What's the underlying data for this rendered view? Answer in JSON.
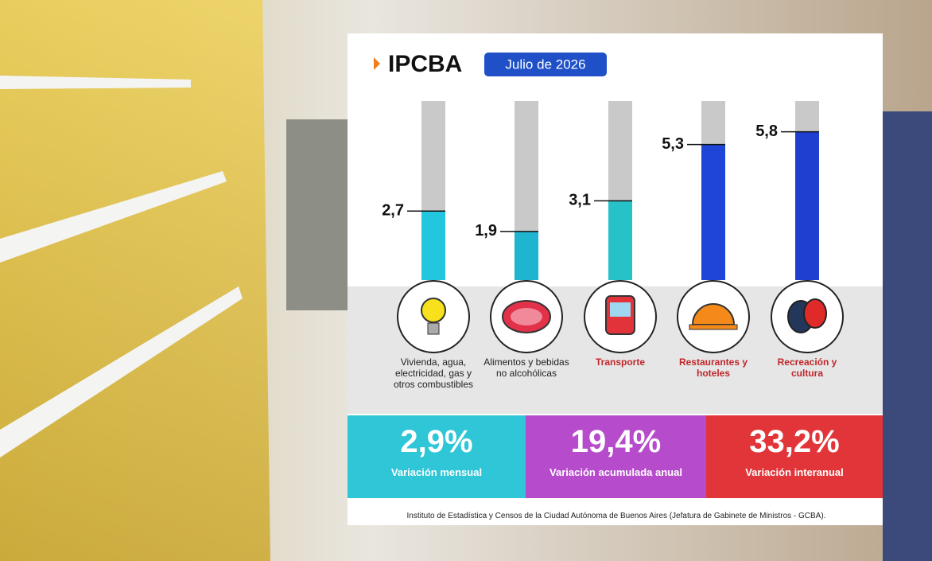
{
  "header": {
    "title": "IPCBA",
    "period": "Julio de 2026"
  },
  "chart_data": {
    "type": "bar",
    "categories": [
      "Vivienda, agua, electricidad, gas y otros combustibles",
      "Alimentos y bebidas no alcohólicas",
      "Transporte",
      "Restaurantes y hoteles",
      "Recreación y cultura"
    ],
    "values": [
      2.7,
      1.9,
      3.1,
      5.3,
      5.8
    ],
    "value_labels": [
      "2,7",
      "1,9",
      "3,1",
      "5,3",
      "5,8"
    ],
    "colors": [
      "#22c6df",
      "#1fb4cf",
      "#27c2c8",
      "#1f45d8",
      "#1e3fcf"
    ],
    "ylim": [
      0,
      7
    ]
  },
  "stats": [
    {
      "value": 2.9,
      "value_label": "2,9%",
      "label": "Variación mensual",
      "color": "#1fc3d6"
    },
    {
      "value": 19.4,
      "value_label": "19,4%",
      "label": "Variación acumulada anual",
      "color": "#b23fc9"
    },
    {
      "value": 33.2,
      "value_label": "33,2%",
      "label": "Variación interanual",
      "color": "#e2262a"
    }
  ],
  "footer": "Instituto de Estadística y Censos de la Ciudad Autónoma de Buenos Aires (Jefatura de Gabinete de Ministros - GCBA)."
}
